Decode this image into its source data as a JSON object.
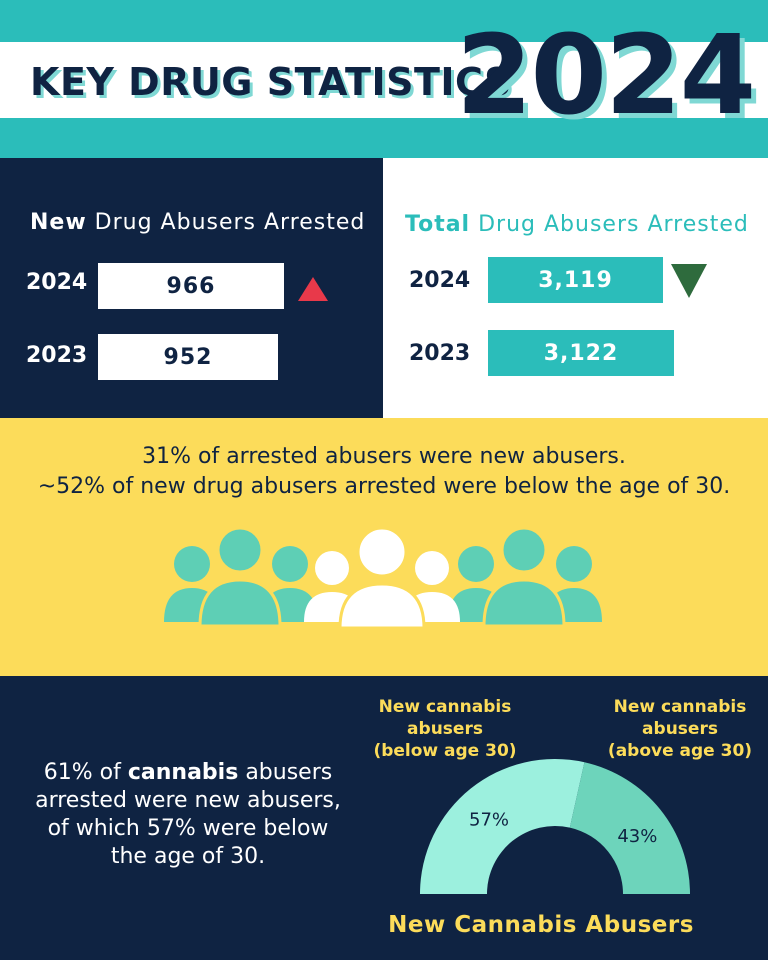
{
  "header": {
    "title": "KEY DRUG STATISTICS",
    "year": "2024"
  },
  "new_arrested": {
    "heading_bold": "New",
    "heading_rest": " Drug Abusers Arrested",
    "rows": [
      {
        "year": "2024",
        "value": "966",
        "trend": "up"
      },
      {
        "year": "2023",
        "value": "952"
      }
    ]
  },
  "total_arrested": {
    "heading_bold": "Total",
    "heading_rest": " Drug Abusers Arrested",
    "rows": [
      {
        "year": "2024",
        "value": "3,119",
        "trend": "down"
      },
      {
        "year": "2023",
        "value": "3,122"
      }
    ]
  },
  "colors": {
    "navy": "#0f2342",
    "teal": "#2bbdba",
    "yellow": "#fcdc5a",
    "up_arrow": "#e8394a",
    "down_arrow": "#2e6b3d",
    "people_teal": "#5ecfb5",
    "donut_light": "#9cf0de",
    "donut_dark": "#6dd4bb"
  },
  "yellow": {
    "line1": "31% of arrested abusers were new abusers.",
    "line2": "~52% of new drug abusers arrested were below the age of 30."
  },
  "cannabis": {
    "line1": "61% of ",
    "line1_bold": "cannabis",
    "line1_end": " abusers",
    "line2": "arrested were new abusers,",
    "line3": "of which 57% were below",
    "line4": "the age of 30."
  },
  "chart_data": {
    "type": "pie",
    "title": "New Cannabis Abusers",
    "style": "half-donut",
    "categories": [
      "New cannabis abusers (below age 30)",
      "New cannabis abusers (above age 30)"
    ],
    "values": [
      57,
      43
    ],
    "value_labels": [
      "57%",
      "43%"
    ],
    "label_lines": [
      [
        "New cannabis",
        "abusers",
        "(below age 30)"
      ],
      [
        "New cannabis",
        "abusers",
        "(above age 30)"
      ]
    ]
  }
}
